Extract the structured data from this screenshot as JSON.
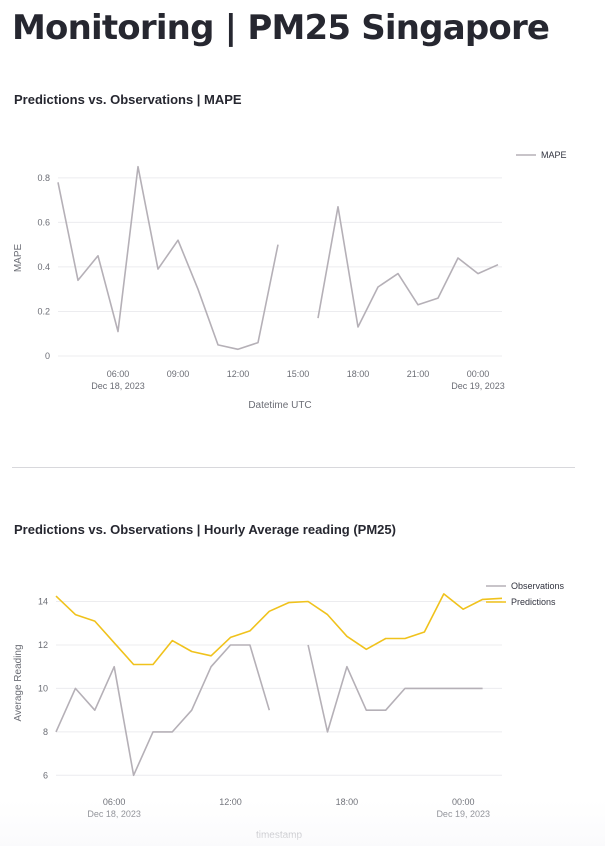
{
  "page": {
    "title": "Monitoring | PM25 Singapore"
  },
  "chart_data": [
    {
      "type": "line",
      "title": "Predictions vs. Observations | MAPE",
      "xlabel": "Datetime UTC",
      "ylabel": "MAPE",
      "x_unit": "hours since Dec 18, 2023 00:00 UTC",
      "x": [
        3,
        4,
        5,
        6,
        7,
        8,
        9,
        10,
        11,
        12,
        13,
        14,
        15,
        16,
        17,
        18,
        19,
        20,
        21,
        22,
        23,
        24,
        25,
        26
      ],
      "series": [
        {
          "name": "MAPE",
          "color": "#b5b0b7",
          "values": [
            0.78,
            0.34,
            0.45,
            0.11,
            0.85,
            0.39,
            0.52,
            0.3,
            0.05,
            0.03,
            0.06,
            0.5,
            null,
            0.17,
            0.67,
            0.13,
            0.31,
            0.37,
            0.23,
            0.26,
            0.44,
            0.37,
            0.41,
            null
          ]
        }
      ],
      "xlim": [
        3,
        25.2
      ],
      "ylim": [
        0,
        0.88
      ],
      "yticks": [
        0,
        0.2,
        0.4,
        0.6,
        0.8
      ],
      "ytick_labels": [
        "0",
        "0.2",
        "0.4",
        "0.6",
        "0.8"
      ],
      "xticks": [
        {
          "x": 6,
          "label": "06:00",
          "sublabel": "Dec 18, 2023"
        },
        {
          "x": 9,
          "label": "09:00",
          "sublabel": ""
        },
        {
          "x": 12,
          "label": "12:00",
          "sublabel": ""
        },
        {
          "x": 15,
          "label": "15:00",
          "sublabel": ""
        },
        {
          "x": 18,
          "label": "18:00",
          "sublabel": ""
        },
        {
          "x": 21,
          "label": "21:00",
          "sublabel": ""
        },
        {
          "x": 24,
          "label": "00:00",
          "sublabel": "Dec 19, 2023"
        }
      ],
      "grid": true,
      "legend": "top-right"
    },
    {
      "type": "line",
      "title": "Predictions vs. Observations | Hourly Average reading (PM25)",
      "xlabel": "timestamp",
      "ylabel": "Average Reading",
      "x_unit": "hours since Dec 18, 2023 00:00 UTC",
      "x": [
        3,
        4,
        5,
        6,
        7,
        8,
        9,
        10,
        11,
        12,
        13,
        14,
        15,
        16,
        17,
        18,
        19,
        20,
        21,
        22,
        23,
        24,
        25,
        26
      ],
      "series": [
        {
          "name": "Observations",
          "color": "#b5b0b7",
          "values": [
            8,
            10,
            9,
            11,
            6,
            8,
            8,
            9,
            11,
            12,
            12,
            9,
            null,
            12,
            8,
            11,
            9,
            9,
            10,
            10,
            10,
            10,
            10,
            null
          ]
        },
        {
          "name": "Predictions",
          "color": "#f0c21c",
          "values": [
            14.25,
            13.4,
            13.1,
            12.1,
            11.1,
            11.1,
            12.2,
            11.7,
            11.5,
            12.35,
            12.65,
            13.55,
            13.95,
            14.0,
            13.4,
            12.4,
            11.8,
            12.3,
            12.3,
            12.6,
            14.35,
            13.65,
            14.1,
            14.15
          ]
        }
      ],
      "xlim": [
        3,
        26
      ],
      "ylim": [
        5.6,
        14.9
      ],
      "yticks": [
        6,
        8,
        10,
        12,
        14
      ],
      "ytick_labels": [
        "6",
        "8",
        "10",
        "12",
        "14"
      ],
      "xticks": [
        {
          "x": 6,
          "label": "06:00",
          "sublabel": "Dec 18, 2023"
        },
        {
          "x": 12,
          "label": "12:00",
          "sublabel": ""
        },
        {
          "x": 18,
          "label": "18:00",
          "sublabel": ""
        },
        {
          "x": 24,
          "label": "00:00",
          "sublabel": "Dec 19, 2023"
        }
      ],
      "grid": true,
      "legend": "top-right"
    }
  ]
}
